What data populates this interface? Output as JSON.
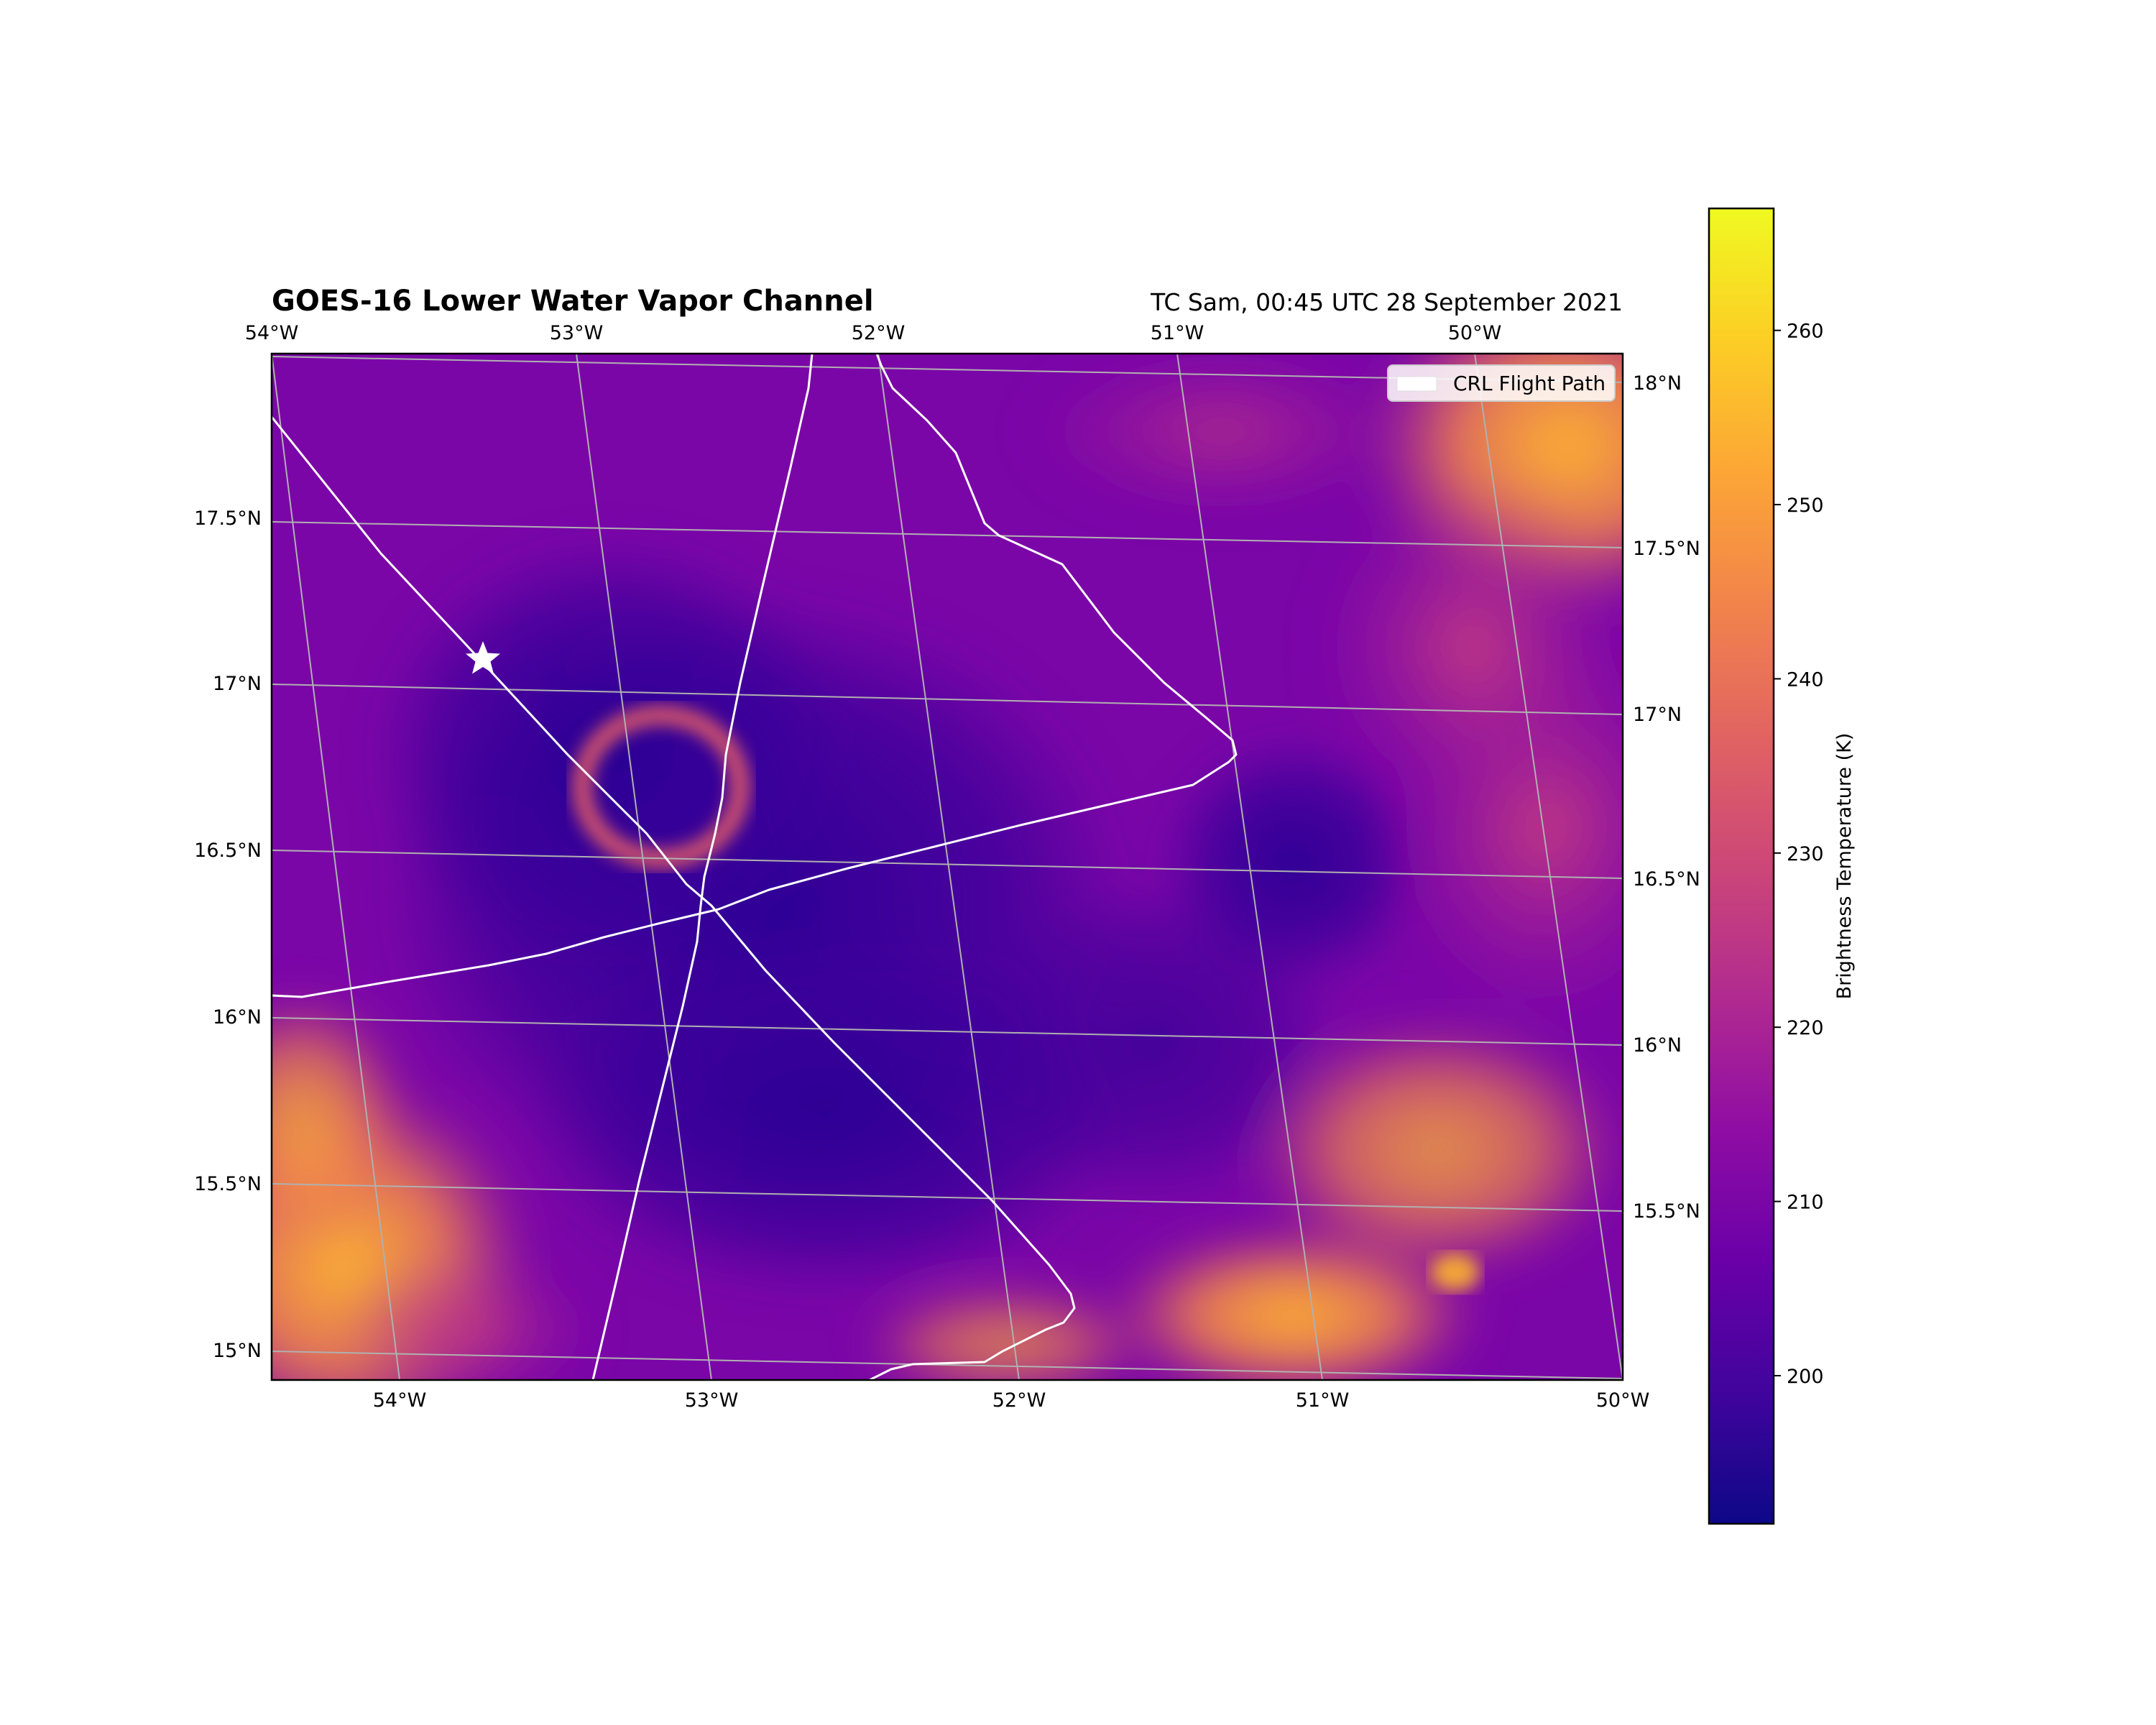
{
  "title": "GOES-16 Lower Water Vapor Channel",
  "subtitle": "TC Sam, 00:45 UTC 28 September 2021",
  "legend": {
    "label": "CRL Flight Path",
    "placement": "top-right"
  },
  "colorbar": {
    "label": "Brightness Temperature (K)",
    "colormap": "plasma",
    "range": [
      191.5,
      267
    ],
    "ticks": [
      "200",
      "210",
      "220",
      "230",
      "240",
      "250",
      "260"
    ],
    "tick_values": [
      200,
      210,
      220,
      230,
      240,
      250,
      260
    ]
  },
  "map": {
    "lon_range": [
      -54.45,
      -50.0
    ],
    "lat_range": [
      14.9,
      18.1
    ],
    "gridlines": true,
    "top_lon_ticks": [
      "54°W",
      "53°W",
      "52°W",
      "51°W",
      "50°W"
    ],
    "bottom_lon_ticks": [
      "54°W",
      "53°W",
      "52°W",
      "51°W",
      "50°W"
    ],
    "left_lat_ticks": [
      "17.5°N",
      "17°N",
      "16.5°N",
      "16°N",
      "15.5°N",
      "15°N"
    ],
    "right_lat_ticks": [
      "18°N",
      "17.5°N",
      "17°N",
      "16.5°N",
      "16°N",
      "15.5°N"
    ]
  },
  "chart_data": {
    "type": "heatmap",
    "title": "GOES-16 Lower Water Vapor Channel",
    "variable": "Brightness Temperature (K)",
    "value_range": [
      191.5,
      267
    ],
    "description_values": {
      "storm_core_min": 196,
      "surrounding_max": 258
    },
    "flight_path_color": "#ffffff",
    "marker": {
      "symbol": "star",
      "lon": -53.75,
      "lat": 17.1,
      "color": "#ffffff"
    }
  }
}
